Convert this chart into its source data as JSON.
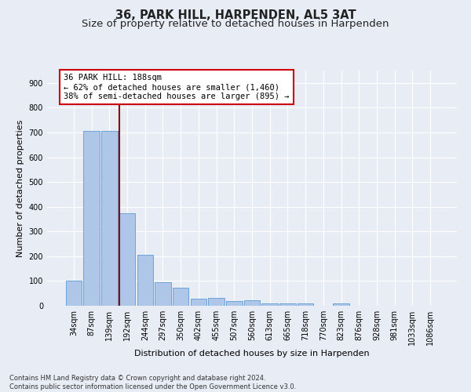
{
  "title1": "36, PARK HILL, HARPENDEN, AL5 3AT",
  "title2": "Size of property relative to detached houses in Harpenden",
  "xlabel": "Distribution of detached houses by size in Harpenden",
  "ylabel": "Number of detached properties",
  "bar_labels": [
    "34sqm",
    "87sqm",
    "139sqm",
    "192sqm",
    "244sqm",
    "297sqm",
    "350sqm",
    "402sqm",
    "455sqm",
    "507sqm",
    "560sqm",
    "613sqm",
    "665sqm",
    "718sqm",
    "770sqm",
    "823sqm",
    "876sqm",
    "928sqm",
    "981sqm",
    "1033sqm",
    "1086sqm"
  ],
  "bar_values": [
    100,
    707,
    707,
    375,
    207,
    95,
    72,
    28,
    32,
    20,
    22,
    10,
    8,
    8,
    0,
    8,
    0,
    0,
    0,
    0,
    0
  ],
  "bar_color": "#aec6e8",
  "bar_edge_color": "#5b9bd5",
  "vline_x_index": 3,
  "vline_color": "#8b0000",
  "annotation_text": "36 PARK HILL: 188sqm\n← 62% of detached houses are smaller (1,460)\n38% of semi-detached houses are larger (895) →",
  "annotation_box_color": "#ffffff",
  "annotation_box_edge": "#cc0000",
  "ylim": [
    0,
    950
  ],
  "yticks": [
    0,
    100,
    200,
    300,
    400,
    500,
    600,
    700,
    800,
    900
  ],
  "footnote": "Contains HM Land Registry data © Crown copyright and database right 2024.\nContains public sector information licensed under the Open Government Licence v3.0.",
  "bg_color": "#e8ecf5",
  "grid_color": "#ffffff",
  "title1_fontsize": 10.5,
  "title2_fontsize": 9.5,
  "axis_label_fontsize": 8,
  "tick_fontsize": 7,
  "annotation_fontsize": 7.5,
  "footnote_fontsize": 6.0
}
